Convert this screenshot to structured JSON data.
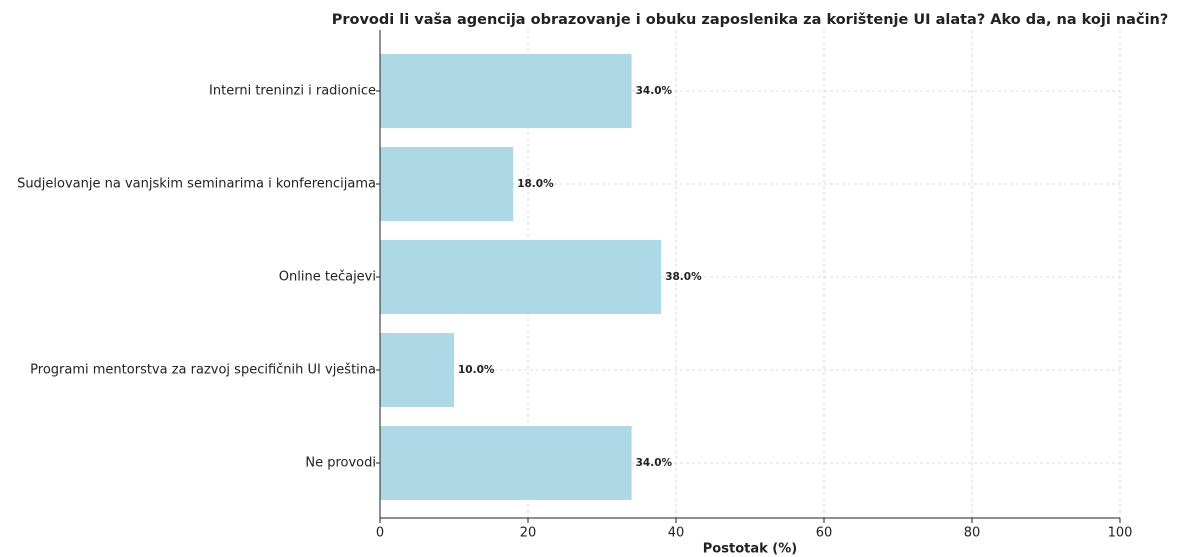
{
  "chart_data": {
    "type": "barh",
    "title": "Provodi li vaša agencija obrazovanje i obuku zaposlenika za korištenje UI alata? Ako da, na koji način?",
    "xlabel": "Postotak (%)",
    "categories": [
      "Interni treninzi i radionice",
      "Sudjelovanje na vanjskim seminarima i konferencijama",
      "Online tečajevi",
      "Programi mentorstva za razvoj specifičnih UI vještina",
      "Ne provodi"
    ],
    "values": [
      34,
      18,
      38,
      10,
      34
    ],
    "value_labels": [
      "34.0%",
      "18.0%",
      "38.0%",
      "10.0%",
      "34.0%"
    ],
    "color": "#add8e6",
    "xlim": [
      0,
      100
    ],
    "xticks": [
      0,
      20,
      40,
      60,
      80,
      100
    ],
    "grid": true
  }
}
